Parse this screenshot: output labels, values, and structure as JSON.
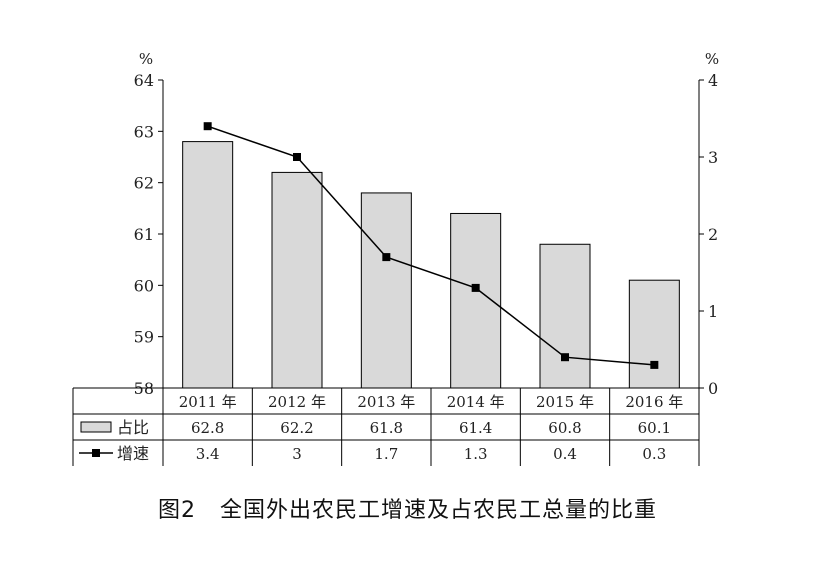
{
  "caption": {
    "number": "图2",
    "title": "全国外出农民工增速及占农民工总量的比重"
  },
  "chart_data": {
    "type": "bar",
    "categories": [
      "2011 年",
      "2012 年",
      "2013 年",
      "2014 年",
      "2015 年",
      "2016 年"
    ],
    "series": [
      {
        "name": "占比",
        "type": "bar",
        "axis": "left",
        "values": [
          62.8,
          62.2,
          61.8,
          61.4,
          60.8,
          60.1
        ],
        "table_values": [
          "62.8",
          "62.2",
          "61.8",
          "61.4",
          "60.8",
          "60.1"
        ],
        "color": "#d9d9d9"
      },
      {
        "name": "增速",
        "type": "line",
        "axis": "right",
        "values": [
          3.4,
          3,
          1.7,
          1.3,
          0.4,
          0.3
        ],
        "table_values": [
          "3.4",
          "3",
          "1.7",
          "1.3",
          "0.4",
          "0.3"
        ],
        "color": "#000000"
      }
    ],
    "y_left": {
      "unit": "%",
      "ylim": [
        58,
        64
      ],
      "ticks": [
        "58",
        "59",
        "60",
        "61",
        "62",
        "63",
        "64"
      ]
    },
    "y_right": {
      "unit": "%",
      "ylim": [
        0,
        4
      ],
      "ticks": [
        "0",
        "1",
        "2",
        "3",
        "4"
      ]
    },
    "grid": false,
    "legend": "data-table-left"
  }
}
